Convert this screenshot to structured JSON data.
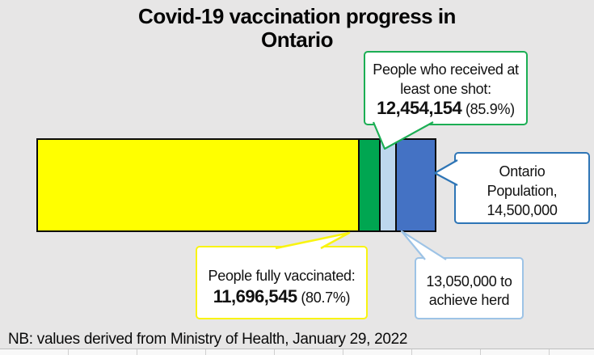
{
  "title": {
    "line1": "Covid-19 vaccination progress in",
    "line2": "Ontario"
  },
  "note": "NB: values derived from Ministry of Health, January 29, 2022",
  "chart_data": {
    "type": "bar",
    "variant": "horizontal-proportional-stacked",
    "title": "Covid-19 vaccination progress in Ontario",
    "total": 14500000,
    "series": [
      {
        "name": "People fully vaccinated",
        "value": 11696545,
        "percent_of_population": 80.7,
        "color": "#FFFF00"
      },
      {
        "name": "People who received at least one shot",
        "value": 12454154,
        "percent_of_population": 85.9,
        "color": "#00A651"
      },
      {
        "name": "Herd immunity threshold",
        "value": 13050000,
        "color": "#BDD7EE"
      },
      {
        "name": "Ontario Population",
        "value": 14500000,
        "color": "#4472C4"
      }
    ],
    "legend": "none",
    "axes": "none",
    "note": "NB: values derived from Ministry of Health, January 29, 2022"
  },
  "callouts": {
    "one_shot": {
      "line1": "People who received at",
      "line2": "least one shot:",
      "value": "12,454,154",
      "percent": "(85.9%)",
      "border_color": "#1CAE54"
    },
    "fully_vaccinated": {
      "line1": "People fully vaccinated:",
      "value": "11,696,545",
      "percent": "(80.7%)",
      "border_color": "#F9F410"
    },
    "herd": {
      "line1": "13,050,000 to",
      "line2": "achieve herd",
      "border_color": "#9DC3E6"
    },
    "population": {
      "line1": "Ontario",
      "line2": "Population,",
      "line3": "14,500,000",
      "border_color": "#2E75B6"
    }
  },
  "colors": {
    "background": "#E7E6E6",
    "bar_outline": "#0A0A0A",
    "callout_fill": "#FFFFFF"
  }
}
